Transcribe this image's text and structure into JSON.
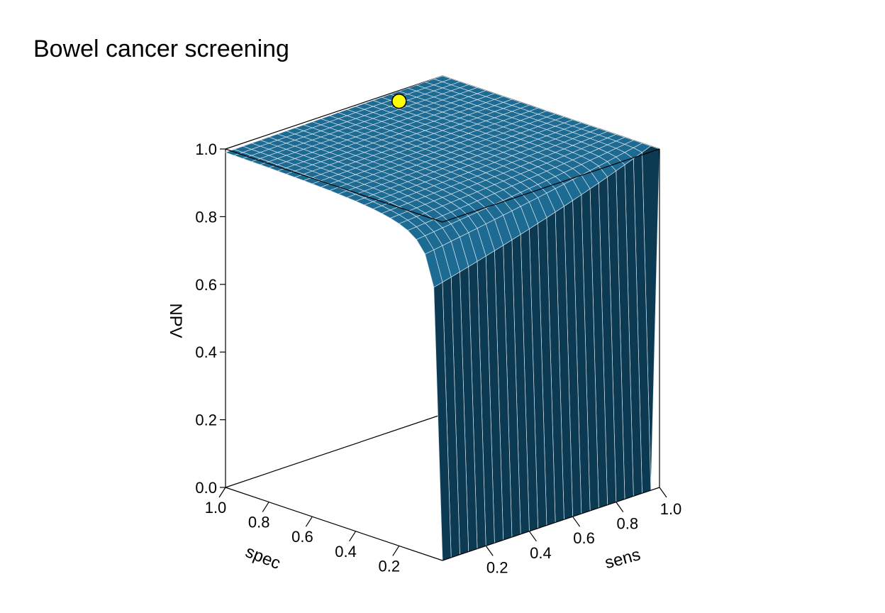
{
  "chart_data": {
    "type": "surface",
    "title": "Bowel cancer screening",
    "xlabel": "sens",
    "ylabel": "spec",
    "zlabel": "NPV",
    "x_ticks": [
      "0.2",
      "0.4",
      "0.6",
      "0.8",
      "1.0"
    ],
    "y_ticks": [
      "1.0",
      "0.8",
      "0.6",
      "0.4",
      "0.2"
    ],
    "z_ticks": [
      "0.0",
      "0.2",
      "0.4",
      "0.6",
      "0.8",
      "1.0"
    ],
    "xlim": [
      0,
      1
    ],
    "ylim": [
      0,
      1
    ],
    "zlim": [
      0,
      1
    ],
    "surface_color": "#0b3a52",
    "surface_light_color": "#1d6a92",
    "grid_line_color": "#d6e4ec",
    "marked_point": {
      "sens": 0.75,
      "spec": 0.95,
      "npv": 0.99,
      "color": "#ffff00"
    }
  }
}
